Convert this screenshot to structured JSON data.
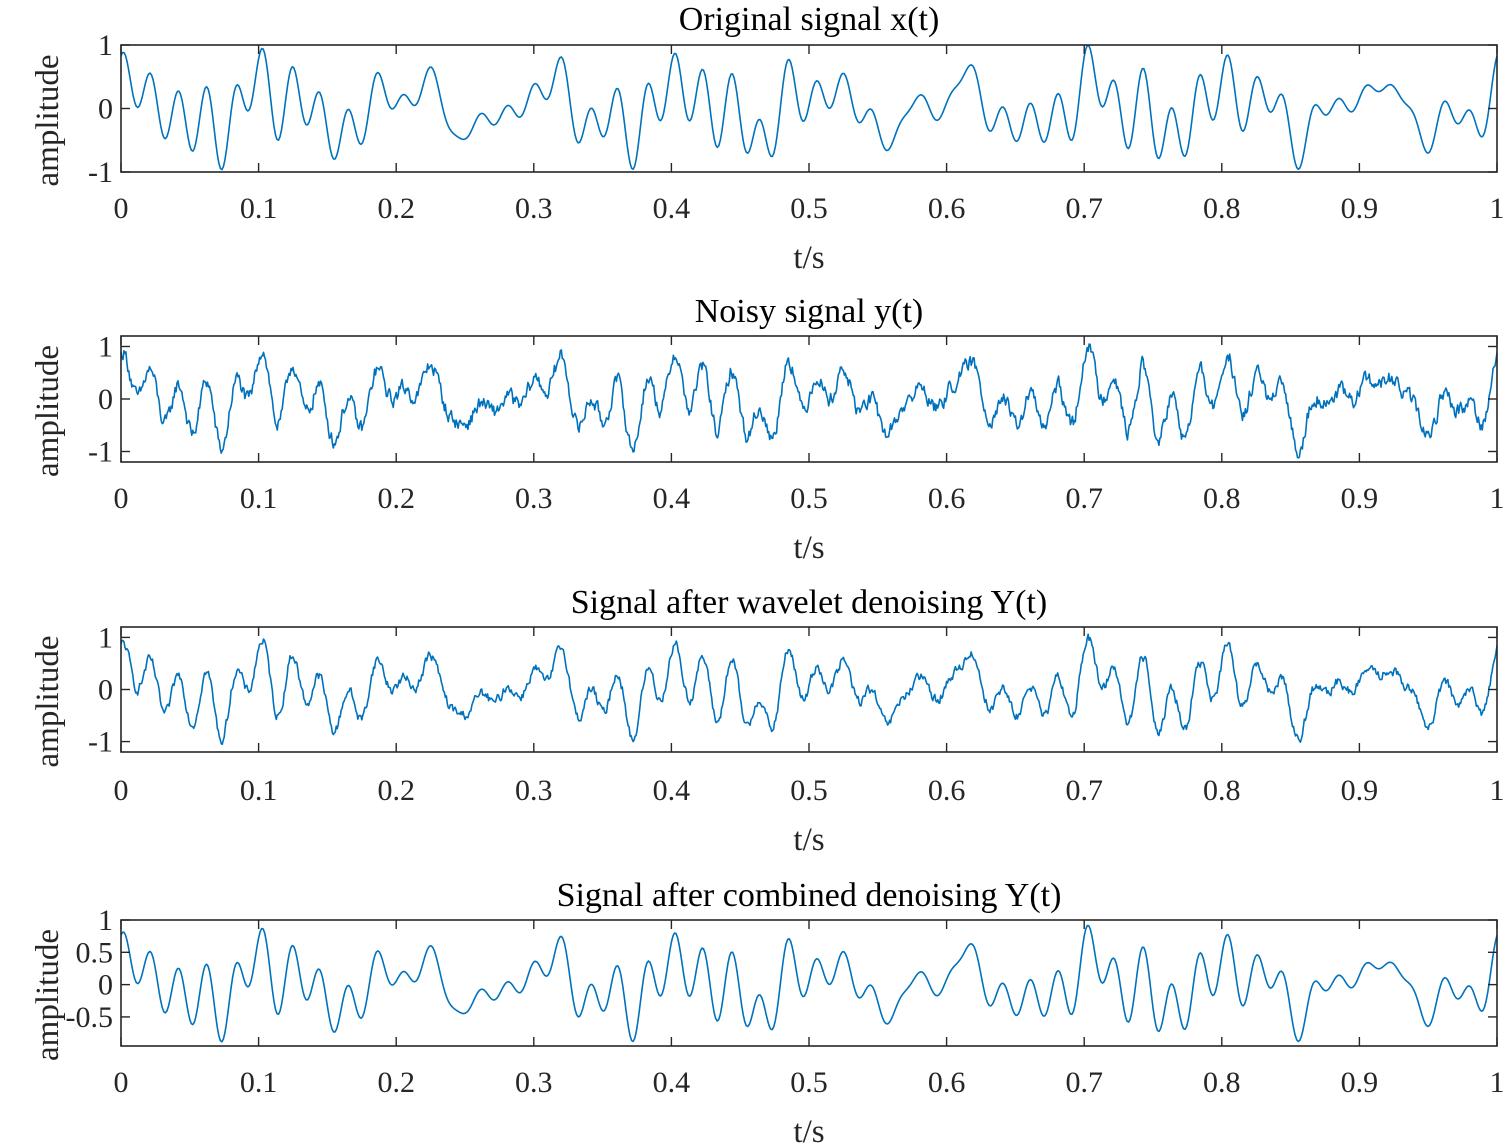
{
  "chart_data": [
    {
      "type": "line",
      "title": "Original signal x(t)",
      "xlabel": "t/s",
      "ylabel": "amplitude",
      "xlim": [
        0,
        1
      ],
      "ylim": [
        -1,
        1
      ],
      "xticks": [
        "0",
        "0.1",
        "0.2",
        "0.3",
        "0.4",
        "0.5",
        "0.6",
        "0.7",
        "0.8",
        "0.9",
        "1"
      ],
      "yticks": [
        "-1",
        "0",
        "1"
      ],
      "ytick_values": [
        -1,
        0,
        1
      ],
      "noise": 0,
      "scale": 1.0,
      "series": [
        {
          "name": "x(t)",
          "color": "#0072BD"
        }
      ]
    },
    {
      "type": "line",
      "title": "Noisy signal y(t)",
      "xlabel": "t/s",
      "ylabel": "amplitude",
      "xlim": [
        0,
        1
      ],
      "ylim": [
        -1.2,
        1.2
      ],
      "xticks": [
        "0",
        "0.1",
        "0.2",
        "0.3",
        "0.4",
        "0.5",
        "0.6",
        "0.7",
        "0.8",
        "0.9",
        "1"
      ],
      "yticks": [
        "-1",
        "0",
        "1"
      ],
      "ytick_values": [
        -1,
        0,
        1
      ],
      "noise": 0.28,
      "scale": 1.0,
      "series": [
        {
          "name": "y(t)",
          "color": "#0072BD"
        }
      ]
    },
    {
      "type": "line",
      "title": "Signal after wavelet denoising Y(t)",
      "xlabel": "t/s",
      "ylabel": "amplitude",
      "xlim": [
        0,
        1
      ],
      "ylim": [
        -1.2,
        1.2
      ],
      "xticks": [
        "0",
        "0.1",
        "0.2",
        "0.3",
        "0.4",
        "0.5",
        "0.6",
        "0.7",
        "0.8",
        "0.9",
        "1"
      ],
      "yticks": [
        "-1",
        "0",
        "1"
      ],
      "ytick_values": [
        -1,
        0,
        1
      ],
      "noise": 0.18,
      "scale": 1.0,
      "series": [
        {
          "name": "Y(t)",
          "color": "#0072BD"
        }
      ]
    },
    {
      "type": "line",
      "title": "Signal after combined denoising Y(t)",
      "xlabel": "t/s",
      "ylabel": "amplitude",
      "xlim": [
        0,
        1
      ],
      "ylim": [
        -0.95,
        1.0
      ],
      "xticks": [
        "0",
        "0.1",
        "0.2",
        "0.3",
        "0.4",
        "0.5",
        "0.6",
        "0.7",
        "0.8",
        "0.9",
        "1"
      ],
      "yticks": [
        "-0.5",
        "0",
        "0.5",
        "1"
      ],
      "ytick_values": [
        -0.5,
        0,
        0.5,
        1
      ],
      "noise": 0,
      "scale": 0.92,
      "series": [
        {
          "name": "Y(t)",
          "color": "#0072BD"
        }
      ]
    }
  ]
}
